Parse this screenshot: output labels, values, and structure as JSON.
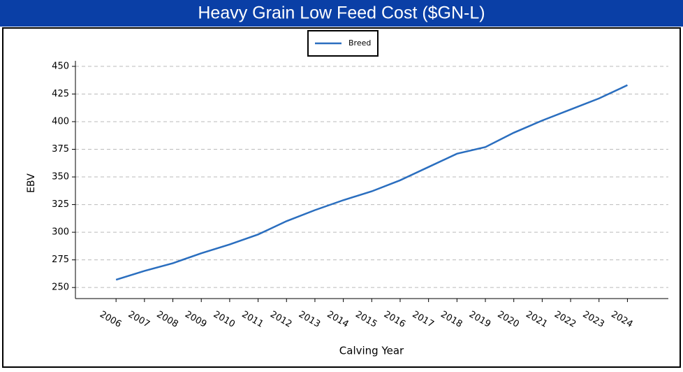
{
  "chart_data": {
    "type": "line",
    "title": "Heavy Grain Low Feed Cost ($GN-L)",
    "x_label": "Calving Year",
    "y_label": "EBV",
    "x": [
      2006,
      2007,
      2008,
      2009,
      2010,
      2011,
      2012,
      2013,
      2014,
      2015,
      2016,
      2017,
      2018,
      2019,
      2020,
      2021,
      2022,
      2023,
      2024
    ],
    "series": [
      {
        "name": "Breed",
        "color": "#2a6ebf",
        "values": [
          257,
          265,
          272,
          281,
          289,
          298,
          310,
          320,
          329,
          337,
          347,
          359,
          371,
          377,
          390,
          401,
          411,
          421,
          433
        ]
      }
    ],
    "xlim": [
      2004.57,
      2025.44
    ],
    "xticks": [
      2006,
      2007,
      2008,
      2009,
      2010,
      2011,
      2012,
      2013,
      2014,
      2015,
      2016,
      2017,
      2018,
      2019,
      2020,
      2021,
      2022,
      2023,
      2024
    ],
    "ylim": [
      240,
      455
    ],
    "yticks": [
      250,
      275,
      300,
      325,
      350,
      375,
      400,
      425,
      450
    ],
    "grid": true,
    "legend": "top"
  }
}
